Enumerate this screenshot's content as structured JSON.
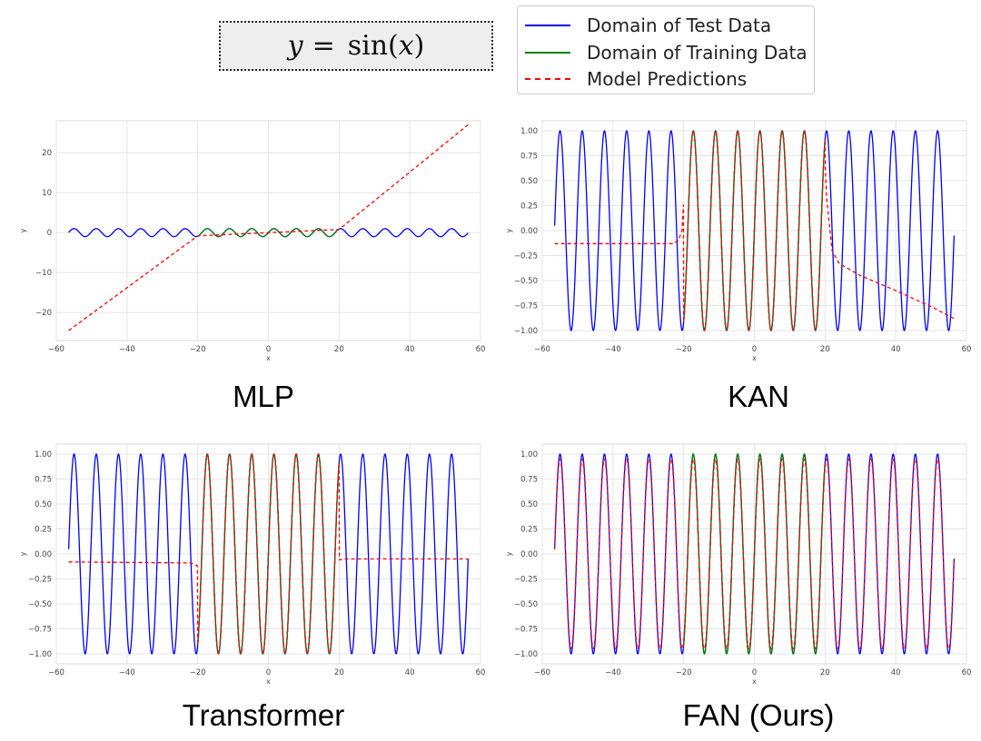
{
  "formula": {
    "lhs": "y",
    "eq": "=",
    "fn": "sin",
    "arg": "x"
  },
  "legend": [
    {
      "label": "Domain of Test Data",
      "color": "#0000ff",
      "style": "solid"
    },
    {
      "label": "Domain of Training Data",
      "color": "#008000",
      "style": "solid"
    },
    {
      "label": "Model Predictions",
      "color": "#ff0000",
      "style": "dashed"
    }
  ],
  "chart_data": [
    {
      "type": "line",
      "title": "MLP",
      "xlabel": "x",
      "ylabel": "y",
      "xlim": [
        -60,
        60
      ],
      "ylim": [
        -27,
        28
      ],
      "xticks": [
        -60,
        -40,
        -20,
        0,
        20,
        40,
        60
      ],
      "yticks": [
        -20,
        -10,
        0,
        10,
        20
      ],
      "ytick_labels": [
        "−20",
        "−10",
        "0",
        "10",
        "20"
      ],
      "grid": true,
      "series": [
        {
          "name": "Domain of Test Data",
          "function": "sin(x)",
          "x_range": [
            -56.5,
            56.5
          ],
          "color": "#0000ff"
        },
        {
          "name": "Domain of Training Data",
          "function": "sin(x)",
          "x_range": [
            -20,
            20
          ],
          "color": "#008000"
        },
        {
          "name": "Model Predictions",
          "color": "#ff0000",
          "style": "dashed",
          "points": [
            [
              -56.5,
              -24.5
            ],
            [
              -20,
              -0.8
            ],
            [
              20,
              0.8
            ],
            [
              56.5,
              27
            ]
          ]
        }
      ]
    },
    {
      "type": "line",
      "title": "KAN",
      "xlabel": "x",
      "ylabel": "y",
      "xlim": [
        -60,
        60
      ],
      "ylim": [
        -1.1,
        1.1
      ],
      "xticks": [
        -60,
        -40,
        -20,
        0,
        20,
        40,
        60
      ],
      "yticks": [
        -1.0,
        -0.75,
        -0.5,
        -0.25,
        0.0,
        0.25,
        0.5,
        0.75,
        1.0
      ],
      "ytick_labels": [
        "−1.00",
        "−0.75",
        "−0.50",
        "−0.25",
        "0.00",
        "0.25",
        "0.50",
        "0.75",
        "1.00"
      ],
      "grid": true,
      "series": [
        {
          "name": "Domain of Test Data",
          "function": "sin(x)",
          "x_range": [
            -56.5,
            56.5
          ],
          "color": "#0000ff"
        },
        {
          "name": "Domain of Training Data",
          "function": "sin(x)",
          "x_range": [
            -20,
            20
          ],
          "color": "#008000"
        },
        {
          "name": "Model Predictions",
          "color": "#ff0000",
          "style": "dashed",
          "in_domain": "sin(x)",
          "points": [
            [
              -56.5,
              -0.13
            ],
            [
              -23,
              -0.13
            ],
            [
              -21.5,
              -0.1
            ],
            [
              -20.5,
              0.0
            ],
            [
              -20,
              0.3
            ],
            [
              20,
              0.68
            ],
            [
              20.5,
              0.3
            ],
            [
              22,
              -0.2
            ],
            [
              24,
              -0.33
            ],
            [
              30,
              -0.45
            ],
            [
              40,
              -0.6
            ],
            [
              50,
              -0.76
            ],
            [
              56.5,
              -0.88
            ]
          ]
        }
      ]
    },
    {
      "type": "line",
      "title": "Transformer",
      "xlabel": "x",
      "ylabel": "y",
      "xlim": [
        -60,
        60
      ],
      "ylim": [
        -1.1,
        1.1
      ],
      "xticks": [
        -60,
        -40,
        -20,
        0,
        20,
        40,
        60
      ],
      "yticks": [
        -1.0,
        -0.75,
        -0.5,
        -0.25,
        0.0,
        0.25,
        0.5,
        0.75,
        1.0
      ],
      "ytick_labels": [
        "−1.00",
        "−0.75",
        "−0.50",
        "−0.25",
        "0.00",
        "0.25",
        "0.50",
        "0.75",
        "1.00"
      ],
      "grid": true,
      "series": [
        {
          "name": "Domain of Test Data",
          "function": "sin(x)",
          "x_range": [
            -56.5,
            56.5
          ],
          "color": "#0000ff"
        },
        {
          "name": "Domain of Training Data",
          "function": "sin(x)",
          "x_range": [
            -20,
            20
          ],
          "color": "#008000"
        },
        {
          "name": "Model Predictions",
          "color": "#ff0000",
          "style": "dashed",
          "in_domain": "sin(x)",
          "points": [
            [
              -56.5,
              -0.08
            ],
            [
              -22,
              -0.09
            ],
            [
              -20,
              -0.12
            ],
            [
              -19.5,
              0.05
            ],
            [
              -19,
              0.2
            ],
            [
              19,
              0.1
            ],
            [
              20,
              -0.06
            ],
            [
              22,
              -0.05
            ],
            [
              56.5,
              -0.05
            ]
          ]
        }
      ]
    },
    {
      "type": "line",
      "title": "FAN (Ours)",
      "xlabel": "x",
      "ylabel": "y",
      "xlim": [
        -60,
        60
      ],
      "ylim": [
        -1.1,
        1.1
      ],
      "xticks": [
        -60,
        -40,
        -20,
        0,
        20,
        40,
        60
      ],
      "yticks": [
        -1.0,
        -0.75,
        -0.5,
        -0.25,
        0.0,
        0.25,
        0.5,
        0.75,
        1.0
      ],
      "ytick_labels": [
        "−1.00",
        "−0.75",
        "−0.50",
        "−0.25",
        "0.00",
        "0.25",
        "0.50",
        "0.75",
        "1.00"
      ],
      "grid": true,
      "series": [
        {
          "name": "Domain of Test Data",
          "function": "sin(x)",
          "x_range": [
            -56.5,
            56.5
          ],
          "color": "#0000ff"
        },
        {
          "name": "Domain of Training Data",
          "function": "sin(x)",
          "x_range": [
            -20,
            20
          ],
          "color": "#008000"
        },
        {
          "name": "Model Predictions",
          "function": "0.95*sin(x)",
          "x_range": [
            -56.5,
            56.5
          ],
          "color": "#ff0000",
          "style": "dashed"
        }
      ]
    }
  ]
}
